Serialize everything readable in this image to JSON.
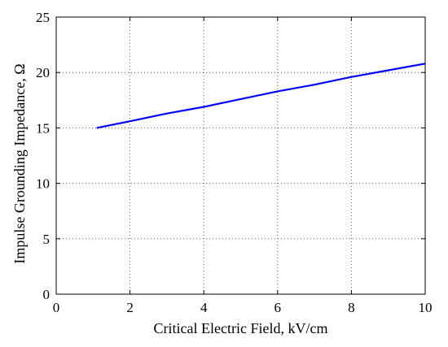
{
  "chart_data": {
    "type": "line",
    "title": "",
    "xlabel": "Critical Electric Field, kV/cm",
    "ylabel": "Impulse Grounding Impedance, Ω",
    "xlim": [
      0,
      10
    ],
    "ylim": [
      0,
      25
    ],
    "x_ticks": [
      0,
      2,
      4,
      6,
      8,
      10
    ],
    "y_ticks": [
      0,
      5,
      10,
      15,
      20,
      25
    ],
    "grid": true,
    "legend": "none",
    "series": [
      {
        "color": "#0000ff",
        "x": [
          1.1,
          2,
          3,
          4,
          5,
          6,
          7,
          8,
          9,
          10
        ],
        "y": [
          15.0,
          15.6,
          16.3,
          16.9,
          17.6,
          18.3,
          18.9,
          19.6,
          20.2,
          20.8
        ]
      }
    ]
  }
}
